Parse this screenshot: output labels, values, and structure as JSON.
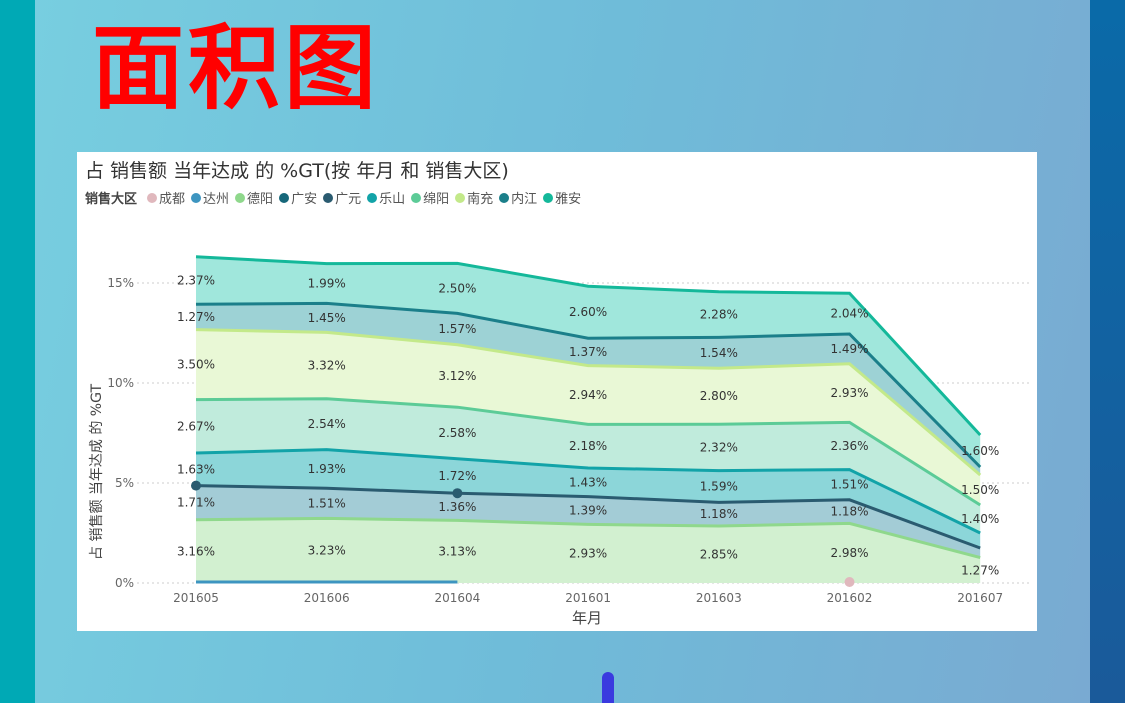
{
  "page_title": "面积图",
  "chart_data": {
    "type": "area",
    "stacked": true,
    "title": "占 销售额 当年达成 的 %GT(按 年月 和 销售大区)",
    "legend_title": "销售大区",
    "legend_position": "top-left",
    "xlabel": "年月",
    "ylabel": "占 销售额 当年达成 的 %GT",
    "ylim": [
      0,
      17
    ],
    "yticks": [
      "0%",
      "5%",
      "10%",
      "15%"
    ],
    "grid": true,
    "categories": [
      "201605",
      "201606",
      "201604",
      "201601",
      "201603",
      "201602",
      "201607"
    ],
    "series": [
      {
        "name": "成都",
        "color": "#e0b8bd",
        "values": [
          null,
          null,
          null,
          null,
          null,
          0.05,
          null
        ]
      },
      {
        "name": "达州",
        "color": "#3d95c0",
        "values": [
          0.05,
          0.05,
          0.05,
          null,
          null,
          null,
          null
        ]
      },
      {
        "name": "德阳",
        "color": "#8fd88c",
        "fill": "#d2f0d0",
        "values": [
          3.16,
          3.23,
          3.13,
          2.93,
          2.85,
          2.98,
          1.27
        ],
        "labels": [
          "3.16%",
          "3.23%",
          "3.13%",
          "2.93%",
          "2.85%",
          "2.98%",
          "1.27%"
        ]
      },
      {
        "name": "广安",
        "color": "#16677a",
        "values": [
          null,
          null,
          null,
          null,
          null,
          null,
          null
        ]
      },
      {
        "name": "广元",
        "color": "#2a5b70",
        "fill": "#a3ccd6",
        "values": [
          1.71,
          1.51,
          1.36,
          1.39,
          1.18,
          1.18,
          0.48
        ],
        "labels": [
          "1.71%",
          "1.51%",
          "1.36%",
          "1.39%",
          "1.18%",
          "1.18%",
          ""
        ]
      },
      {
        "name": "乐山",
        "color": "#12a3a8",
        "fill": "#8cd6d9",
        "values": [
          1.63,
          1.93,
          1.72,
          1.43,
          1.59,
          1.51,
          0.75
        ],
        "labels": [
          "1.63%",
          "1.93%",
          "1.72%",
          "1.43%",
          "1.59%",
          "1.51%",
          ""
        ]
      },
      {
        "name": "绵阳",
        "color": "#5ccb97",
        "fill": "#c0ebdc",
        "values": [
          2.67,
          2.54,
          2.58,
          2.18,
          2.32,
          2.36,
          1.4
        ],
        "labels": [
          "2.67%",
          "2.54%",
          "2.58%",
          "2.18%",
          "2.32%",
          "2.36%",
          "1.40%"
        ]
      },
      {
        "name": "南充",
        "color": "#c3e98a",
        "fill": "#e9f8d6",
        "values": [
          3.5,
          3.32,
          3.12,
          2.94,
          2.8,
          2.93,
          1.5
        ],
        "labels": [
          "3.50%",
          "3.32%",
          "3.12%",
          "2.94%",
          "2.80%",
          "2.93%",
          "1.50%"
        ]
      },
      {
        "name": "内江",
        "color": "#1b7f8a",
        "fill": "#9dd2d5",
        "values": [
          1.27,
          1.45,
          1.57,
          1.37,
          1.54,
          1.49,
          0.4
        ],
        "labels": [
          "1.27%",
          "1.45%",
          "1.57%",
          "1.37%",
          "1.54%",
          "1.49%",
          ""
        ]
      },
      {
        "name": "雅安",
        "color": "#14b89a",
        "fill": "#a0e7dc",
        "values": [
          2.37,
          1.99,
          2.5,
          2.6,
          2.28,
          2.04,
          1.6
        ],
        "labels": [
          "2.37%",
          "1.99%",
          "2.50%",
          "2.60%",
          "2.28%",
          "2.04%",
          "1.60%"
        ]
      }
    ]
  }
}
